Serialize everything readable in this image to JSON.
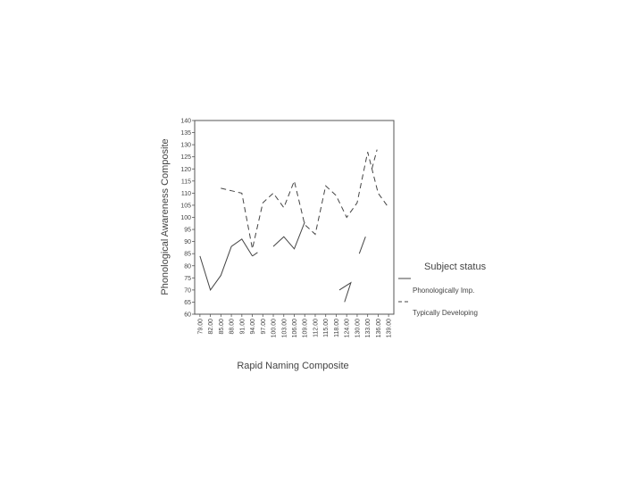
{
  "chart_data": {
    "type": "line",
    "title": "",
    "xlabel": "Rapid Naming Composite",
    "ylabel": "Phonological Awareness Composite",
    "ylim": [
      60,
      140
    ],
    "yticks": [
      60,
      65,
      70,
      75,
      80,
      85,
      90,
      95,
      100,
      105,
      110,
      115,
      120,
      125,
      130,
      135,
      140
    ],
    "categories": [
      "79.00",
      "82.00",
      "85.00",
      "88.00",
      "91.00",
      "94.00",
      "97.00",
      "100.00",
      "103.00",
      "106.00",
      "109.00",
      "112.00",
      "115.00",
      "118.00",
      "124.00",
      "130.00",
      "133.00",
      "136.00",
      "139.00"
    ],
    "grid": false,
    "legend": {
      "title": "Subject status",
      "position": "right"
    },
    "series": [
      {
        "name": "Phonologically Imp.",
        "style": "solid",
        "color": "#444444",
        "values": [
          84,
          70,
          76,
          88,
          91,
          84,
          null,
          88,
          92,
          87,
          98,
          null,
          null,
          null,
          null,
          null,
          null,
          null,
          null
        ]
      },
      {
        "name": "Typically Developing",
        "style": "dashed",
        "color": "#444444",
        "values": [
          null,
          null,
          112,
          111,
          110,
          87,
          106,
          110,
          104,
          115,
          97,
          93,
          113,
          109,
          100,
          106,
          127,
          110,
          104
        ]
      }
    ],
    "segments": [
      {
        "series": 0,
        "from": [
          5,
          84
        ],
        "to": [
          5.5,
          85.5
        ]
      },
      {
        "series": 0,
        "from": [
          13.3,
          70
        ],
        "to": [
          13.8,
          65
        ],
        "mid": [
          14.4,
          73
        ]
      },
      {
        "series": 0,
        "from": [
          15.2,
          85
        ],
        "to": [
          15.8,
          92
        ]
      },
      {
        "series": 1,
        "from": [
          16.4,
          120
        ],
        "to": [
          16.9,
          128
        ]
      }
    ]
  }
}
